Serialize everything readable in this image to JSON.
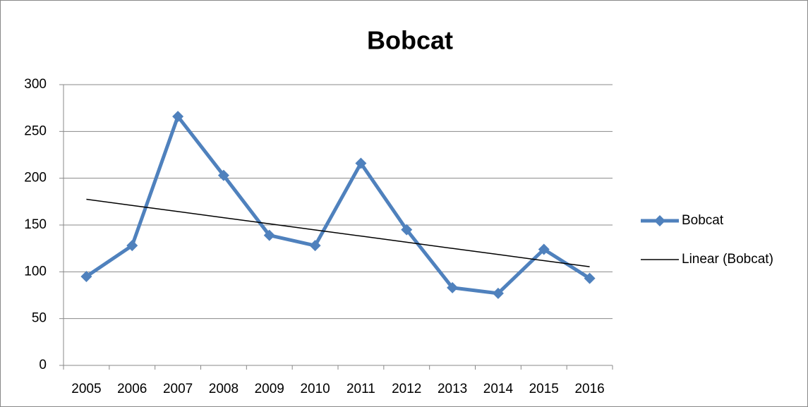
{
  "chart_data": {
    "type": "line",
    "title": "Bobcat",
    "categories": [
      "2005",
      "2006",
      "2007",
      "2008",
      "2009",
      "2010",
      "2011",
      "2012",
      "2013",
      "2014",
      "2015",
      "2016"
    ],
    "series": [
      {
        "name": "Bobcat",
        "color": "#4f81bd",
        "marker": "diamond",
        "values": [
          95,
          128,
          266,
          203,
          139,
          128,
          216,
          145,
          83,
          77,
          124,
          93
        ]
      },
      {
        "name": "Linear (Bobcat)",
        "color": "#000000",
        "marker": "none",
        "values": [
          177.5,
          170.9,
          164.4,
          157.8,
          151.3,
          144.7,
          138.2,
          131.6,
          125.0,
          118.5,
          111.9,
          105.4
        ]
      }
    ],
    "ylim": [
      0,
      300
    ],
    "yticks": [
      0,
      50,
      100,
      150,
      200,
      250,
      300
    ],
    "grid": true,
    "legend": "right"
  }
}
